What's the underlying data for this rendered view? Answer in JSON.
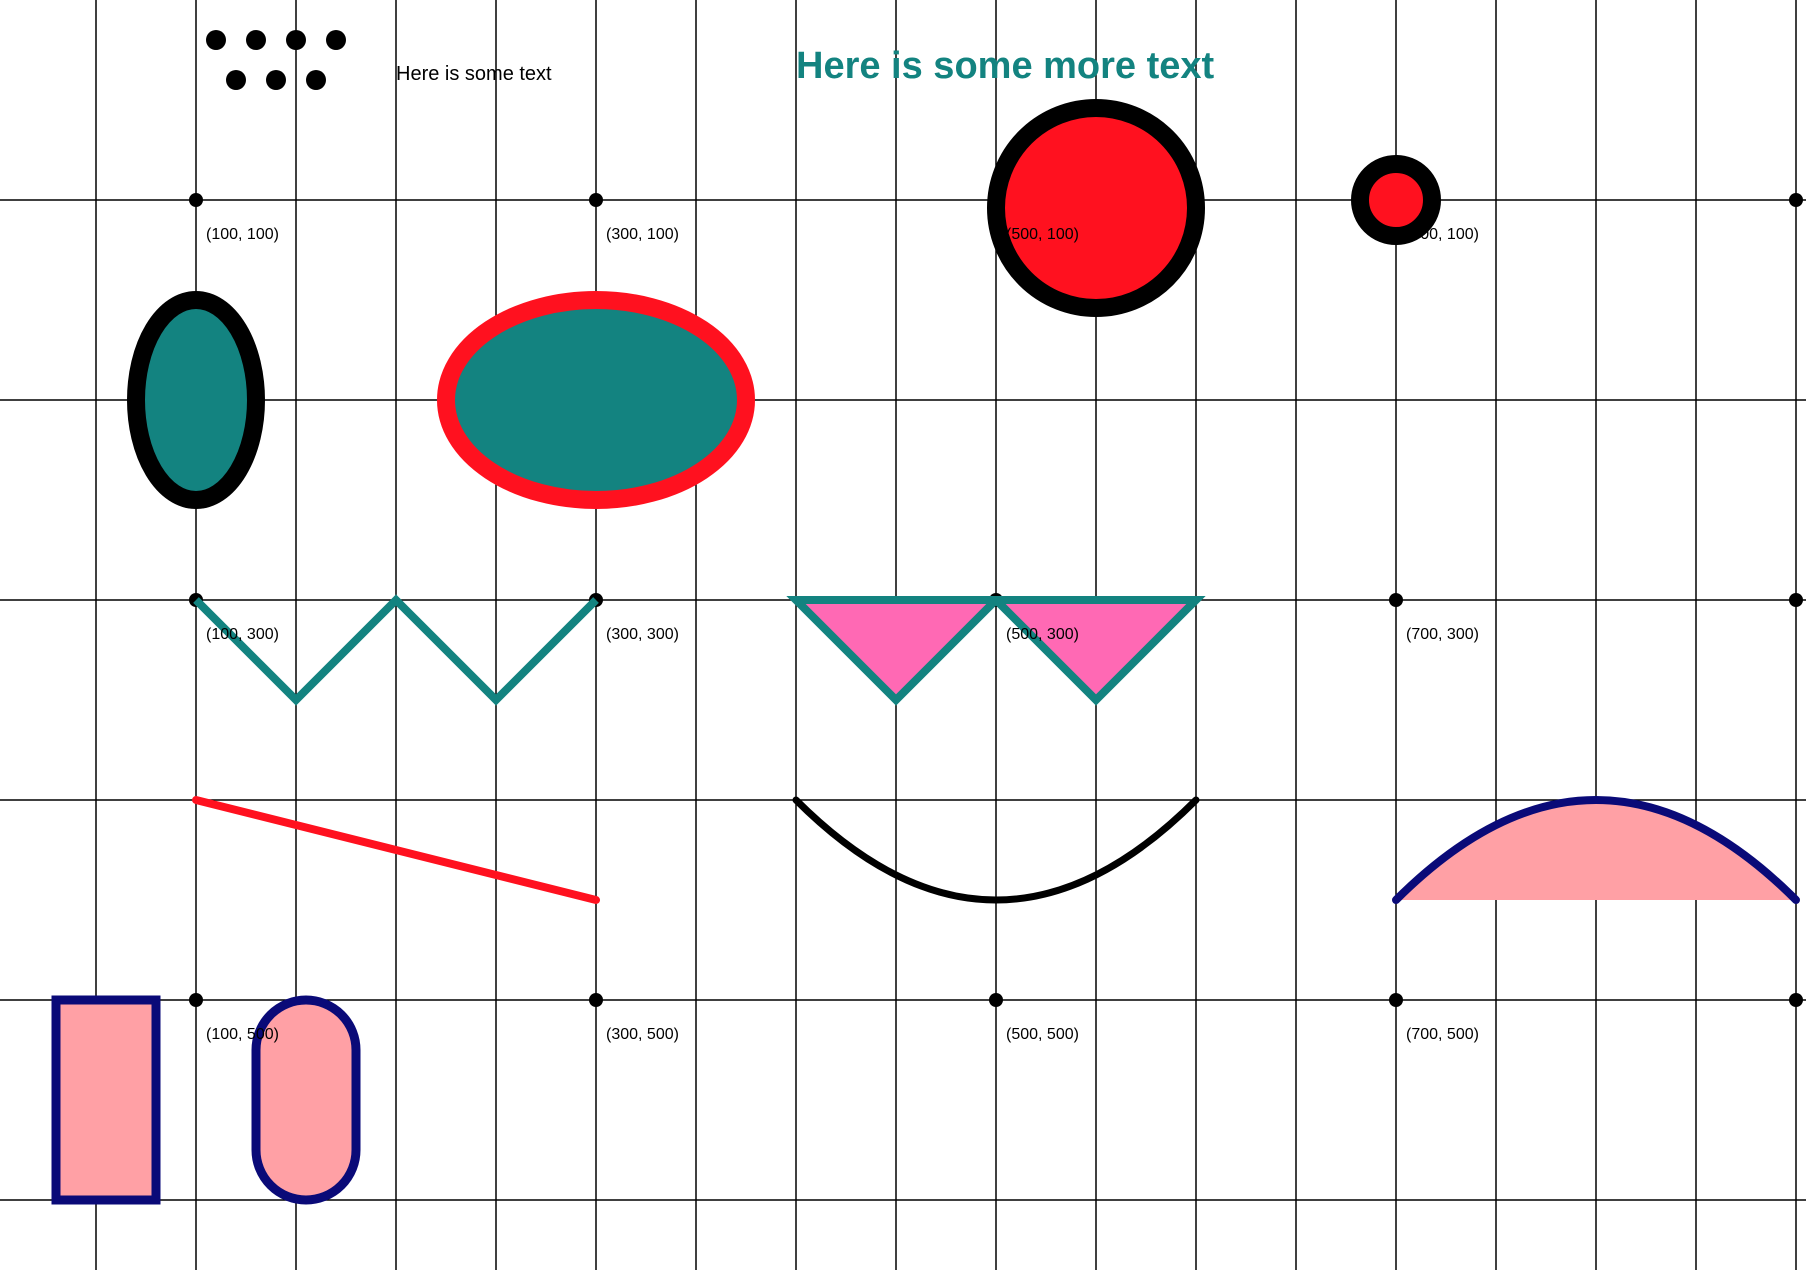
{
  "texts": {
    "plain": "Here is some text",
    "more": "Here is some more text"
  },
  "coordinate_labels": [
    "(100, 100)",
    "(300, 100)",
    "(500, 100)",
    "(700, 100)",
    "(100, 300)",
    "(300, 300)",
    "(500, 300)",
    "(700, 300)",
    "(100, 500)",
    "(300, 500)",
    "(500, 500)",
    "(700, 500)"
  ],
  "colors": {
    "grid": "#000000",
    "teal": "#138380",
    "red": "#ff111f",
    "pink": "#ff69b4",
    "light_pink": "#ffa0a5",
    "navy": "#0a0a78",
    "black": "#000000"
  }
}
